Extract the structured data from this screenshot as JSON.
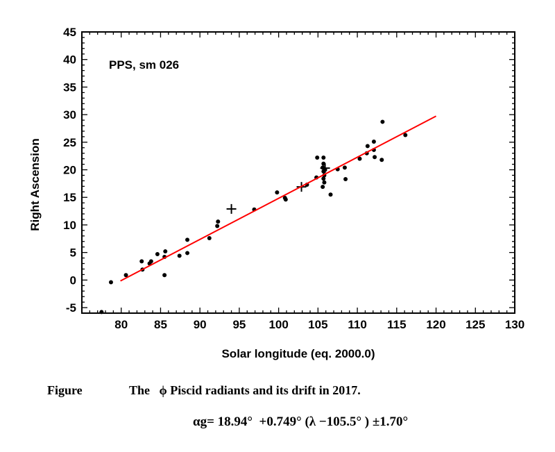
{
  "chart_data": {
    "type": "scatter",
    "xlabel": "Solar longitude (eq. 2000.0)",
    "ylabel": "Right Ascension",
    "xlim": [
      75,
      130
    ],
    "ylim": [
      -6,
      45
    ],
    "xticks": [
      80,
      85,
      90,
      95,
      100,
      105,
      110,
      115,
      120,
      125,
      130
    ],
    "yticks": [
      -5,
      0,
      5,
      10,
      15,
      20,
      25,
      30,
      35,
      40,
      45
    ],
    "annotation": "PPS, sm 026",
    "grid": false,
    "colors": {
      "points": "#000000",
      "fit_line": "#ff0000"
    },
    "series": [
      {
        "type": "scatter",
        "marker": "dot",
        "points": [
          [
            77.5,
            -5.8
          ],
          [
            78.7,
            -0.4
          ],
          [
            80.6,
            0.9
          ],
          [
            82.6,
            3.4
          ],
          [
            82.7,
            1.9
          ],
          [
            83.6,
            3.0
          ],
          [
            83.8,
            3.4
          ],
          [
            84.6,
            4.7
          ],
          [
            85.5,
            4.2
          ],
          [
            85.6,
            5.2
          ],
          [
            85.5,
            0.9
          ],
          [
            87.4,
            4.4
          ],
          [
            88.4,
            7.3
          ],
          [
            88.4,
            4.9
          ],
          [
            91.2,
            7.6
          ],
          [
            92.2,
            9.8
          ],
          [
            92.3,
            10.6
          ],
          [
            96.9,
            12.8
          ],
          [
            99.8,
            15.9
          ],
          [
            100.8,
            14.9
          ],
          [
            100.9,
            14.6
          ],
          [
            103.6,
            17.3
          ],
          [
            104.8,
            18.6
          ],
          [
            104.9,
            22.2
          ],
          [
            105.7,
            22.2
          ],
          [
            105.7,
            21.1
          ],
          [
            105.6,
            20.4
          ],
          [
            105.7,
            19.7
          ],
          [
            105.8,
            19.0
          ],
          [
            105.7,
            18.4
          ],
          [
            105.8,
            17.7
          ],
          [
            105.6,
            16.9
          ],
          [
            105.9,
            20.0
          ],
          [
            106.6,
            15.5
          ],
          [
            107.5,
            20.1
          ],
          [
            108.4,
            20.4
          ],
          [
            108.5,
            18.3
          ],
          [
            110.3,
            22.0
          ],
          [
            111.2,
            23.0
          ],
          [
            111.3,
            24.3
          ],
          [
            112.1,
            25.1
          ],
          [
            112.1,
            23.6
          ],
          [
            112.2,
            22.3
          ],
          [
            113.1,
            21.8
          ],
          [
            113.2,
            28.7
          ],
          [
            116.1,
            26.3
          ]
        ]
      },
      {
        "type": "scatter",
        "marker": "cross",
        "points": [
          [
            94.0,
            12.9
          ],
          [
            102.9,
            16.9
          ],
          [
            105.9,
            20.3
          ]
        ]
      },
      {
        "type": "line",
        "x": [
          79.9,
          120.0
        ],
        "y": [
          -0.16,
          29.73
        ]
      }
    ]
  },
  "caption": {
    "label": "Figure",
    "text": "The   ϕ Piscid radiants and its drift in 2017.",
    "formula": "αg= 18.94°  +0.749° (λ −105.5° ) ±1.70°"
  }
}
